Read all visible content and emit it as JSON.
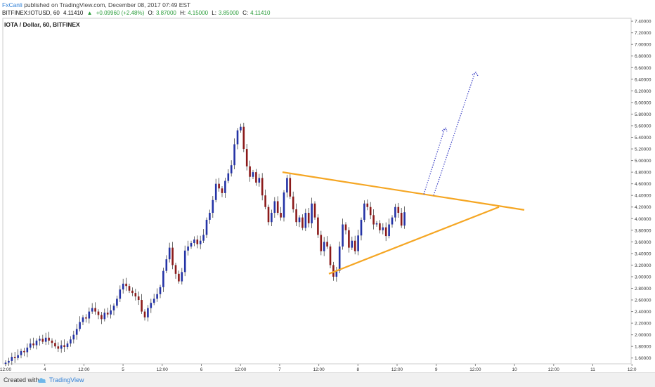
{
  "header": {
    "author": "FxCanli",
    "published": "published on TradingView.com, December 08, 2017 07:49 EST",
    "symbol": "BITFINEX:IOTUSD, 60",
    "last": "4.11410",
    "change": "+0.09960 (+2.48%)",
    "open_label": "O:",
    "open": "3.87000",
    "high_label": "H:",
    "high": "4.15000",
    "low_label": "L:",
    "low": "3.85000",
    "close_label": "C:",
    "close": "4.11410"
  },
  "chart_title": "IOTA / Dollar, 60, BITFINEX",
  "footer": {
    "created": "Created with",
    "brand": "TradingView"
  },
  "colors": {
    "up": "#2433a6",
    "down": "#8b1a1a",
    "wick": "#444444",
    "trend": "#f5a623",
    "projection": "#3a3fc4",
    "grid": "#eeeeee",
    "axis": "#888888"
  },
  "chart_data": {
    "type": "candlestick",
    "title": "IOTA / Dollar, 60, BITFINEX",
    "xlabel": "",
    "ylabel": "",
    "ylim": [
      1.5,
      7.45
    ],
    "x_ticks": [
      "12:00",
      "4",
      "12:00",
      "5",
      "12:00",
      "6",
      "12:00",
      "7",
      "12:00",
      "8",
      "12:00",
      "9",
      "12:00",
      "10",
      "12:00",
      "11",
      "12:0"
    ],
    "y_ticks": [
      "1.60000",
      "1.80000",
      "2.00000",
      "2.20000",
      "2.40000",
      "2.60000",
      "2.80000",
      "3.00000",
      "3.20000",
      "3.40000",
      "3.60000",
      "3.80000",
      "4.00000",
      "4.20000",
      "4.40000",
      "4.60000",
      "4.80000",
      "5.00000",
      "5.20000",
      "5.40000",
      "5.60000",
      "5.80000",
      "6.00000",
      "6.20000",
      "6.40000",
      "6.60000",
      "6.80000",
      "7.00000",
      "7.20000",
      "7.40000"
    ],
    "candle_closes": [
      1.52,
      1.55,
      1.62,
      1.6,
      1.65,
      1.72,
      1.7,
      1.78,
      1.85,
      1.82,
      1.9,
      1.93,
      1.88,
      1.95,
      1.9,
      1.86,
      1.8,
      1.76,
      1.82,
      1.79,
      1.85,
      1.92,
      2.0,
      2.1,
      2.22,
      2.3,
      2.28,
      2.4,
      2.46,
      2.4,
      2.34,
      2.27,
      2.38,
      2.35,
      2.42,
      2.5,
      2.62,
      2.78,
      2.88,
      2.84,
      2.76,
      2.72,
      2.66,
      2.6,
      2.4,
      2.3,
      2.46,
      2.55,
      2.62,
      2.7,
      2.82,
      3.1,
      3.3,
      3.5,
      3.2,
      3.05,
      2.92,
      3.08,
      3.45,
      3.52,
      3.58,
      3.64,
      3.56,
      3.62,
      3.72,
      3.98,
      4.1,
      4.32,
      4.6,
      4.52,
      4.44,
      4.65,
      4.78,
      4.92,
      5.28,
      5.52,
      5.58,
      5.2,
      4.9,
      4.72,
      4.8,
      4.62,
      4.7,
      4.4,
      4.2,
      3.94,
      4.1,
      4.3,
      4.1,
      4.02,
      4.45,
      4.7,
      4.38,
      4.16,
      3.94,
      4.02,
      3.84,
      4.1,
      3.92,
      4.26,
      4.02,
      3.72,
      3.44,
      3.6,
      3.52,
      3.2,
      3.0,
      3.1,
      3.52,
      3.9,
      3.8,
      3.5,
      3.62,
      3.44,
      3.71,
      3.98,
      4.26,
      4.2,
      4.06,
      3.9,
      3.92,
      3.8,
      3.85,
      3.7,
      3.9,
      4.02,
      4.2,
      4.1,
      3.88,
      4.11
    ],
    "triangle_upper": {
      "start": {
        "x": "7",
        "y": 4.8
      },
      "end": {
        "x": "12:00 (10)",
        "y": 4.15
      }
    },
    "triangle_lower": {
      "start": {
        "x": "12:00 (7)",
        "y": 3.05
      },
      "end": {
        "x": "12:00 (9)",
        "y": 4.2
      }
    },
    "projections": [
      {
        "from_y": 4.42,
        "to_y": 5.56
      },
      {
        "from_y": 4.4,
        "to_y": 6.52
      }
    ]
  }
}
